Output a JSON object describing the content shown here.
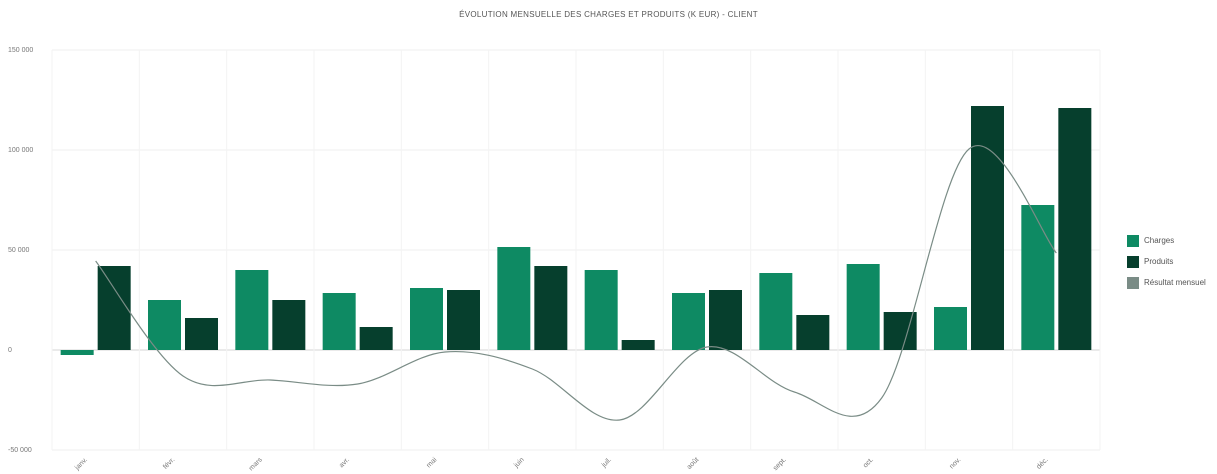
{
  "chart_data": {
    "type": "bar",
    "title": "ÉVOLUTION MENSUELLE DES CHARGES ET PRODUITS (K EUR) - CLIENT",
    "categories": [
      "janv.",
      "févr.",
      "mars",
      "avr.",
      "mai",
      "juin",
      "juil.",
      "août",
      "sept.",
      "oct.",
      "nov.",
      "déc."
    ],
    "series": [
      {
        "name": "Charges",
        "type": "bar",
        "color": "#0e8a63",
        "values": [
          -2500,
          25000,
          40000,
          28500,
          31000,
          51500,
          40000,
          28500,
          38500,
          43000,
          21500,
          72500
        ]
      },
      {
        "name": "Produits",
        "type": "bar",
        "color": "#063f2d",
        "values": [
          42000,
          16000,
          25000,
          11500,
          30000,
          42000,
          5000,
          30000,
          17500,
          19000,
          122000,
          121000
        ]
      },
      {
        "name": "Résultat mensuel",
        "type": "line",
        "color": "#7a8c86",
        "values": [
          44500,
          -13000,
          -15000,
          -17000,
          -1000,
          -9500,
          -35000,
          1500,
          -21000,
          -24000,
          100500,
          48500
        ]
      }
    ],
    "y_ticks": [
      "-50 000",
      "0",
      "50 000",
      "100 000",
      "150 000"
    ],
    "ylim": [
      -50000,
      150000
    ],
    "grid": true,
    "legend_position": "right"
  }
}
